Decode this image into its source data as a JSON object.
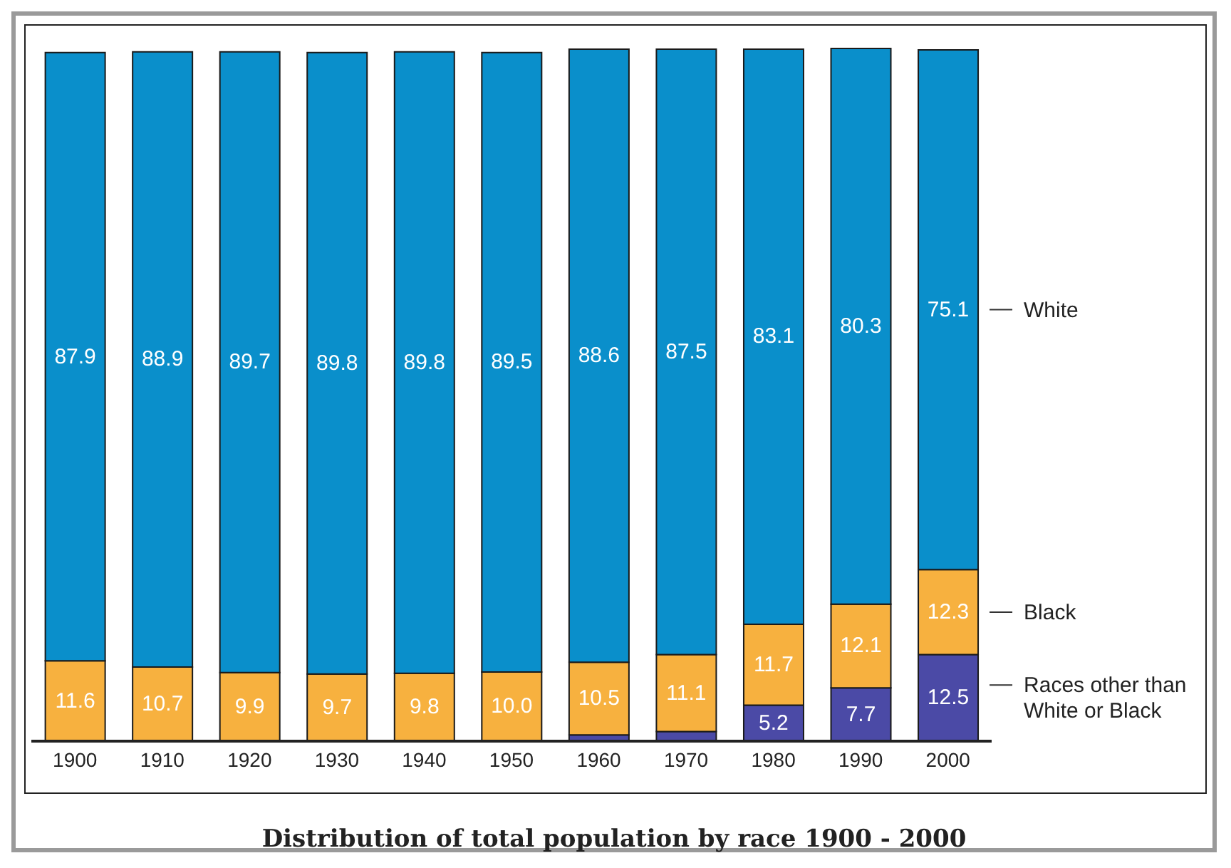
{
  "chart_data": {
    "type": "bar",
    "stacked": true,
    "title": "Distribution of total population by race 1900 - 2000",
    "categories": [
      "1900",
      "1910",
      "1920",
      "1930",
      "1940",
      "1950",
      "1960",
      "1970",
      "1980",
      "1990",
      "2000"
    ],
    "series": [
      {
        "name": "Races other than White or Black",
        "color": "#4b4aa6",
        "values": [
          null,
          null,
          null,
          null,
          null,
          null,
          0.9,
          1.4,
          5.2,
          7.7,
          12.5
        ],
        "value_labels": [
          null,
          null,
          null,
          null,
          null,
          null,
          null,
          null,
          "5.2",
          "7.7",
          "12.5"
        ]
      },
      {
        "name": "Black",
        "color": "#f7b13f",
        "values": [
          11.6,
          10.7,
          9.9,
          9.7,
          9.8,
          10.0,
          10.5,
          11.1,
          11.7,
          12.1,
          12.3
        ],
        "value_labels": [
          "11.6",
          "10.7",
          "9.9",
          "9.7",
          "9.8",
          "10.0",
          "10.5",
          "11.1",
          "11.7",
          "12.1",
          "12.3"
        ]
      },
      {
        "name": "White",
        "color": "#0a8fcb",
        "values": [
          87.9,
          88.9,
          89.7,
          89.8,
          89.8,
          89.5,
          88.6,
          87.5,
          83.1,
          80.3,
          75.1
        ],
        "value_labels": [
          "87.9",
          "88.9",
          "89.7",
          "89.8",
          "89.8",
          "89.5",
          "88.6",
          "87.5",
          "83.1",
          "80.3",
          "75.1"
        ]
      }
    ],
    "legend": "right"
  }
}
